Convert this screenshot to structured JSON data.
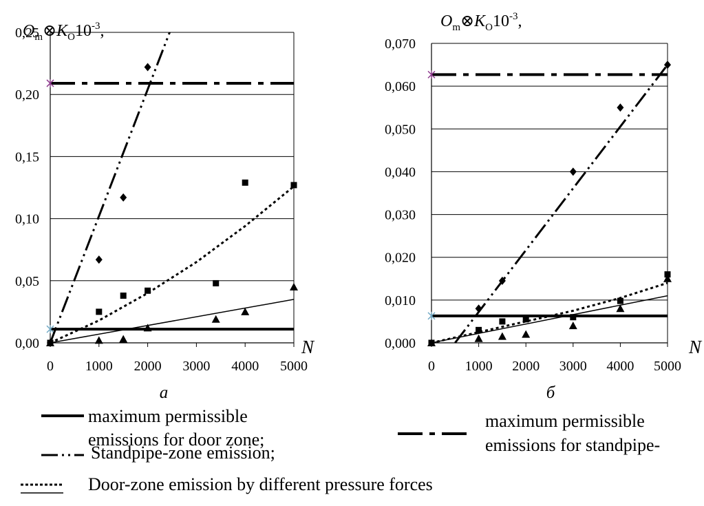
{
  "chart_data": [
    {
      "type": "scatter",
      "panel_label": "а",
      "ylabel": {
        "base": "O",
        "base_sub": "m",
        "op": "⊗",
        "k": "K",
        "k_sub": "O",
        "tail": "10",
        "exp": "-3",
        "end": ","
      },
      "xlabel": "N",
      "xlim": [
        0,
        5000
      ],
      "ylim": [
        0,
        0.25
      ],
      "x_ticks": [
        0,
        1000,
        2000,
        3000,
        4000,
        5000
      ],
      "x_tick_labels": [
        "0",
        "1000",
        "2000",
        "3000",
        "4000",
        "5000"
      ],
      "y_ticks": [
        0,
        0.05,
        0.1,
        0.15,
        0.2,
        0.25
      ],
      "y_tick_labels": [
        "0,00",
        "0,05",
        "0,10",
        "0,15",
        "0,20",
        "0,25"
      ],
      "grid": "horizontal",
      "series": [
        {
          "marker": "diamond",
          "style": "dash-dot-dot",
          "points": [
            [
              0,
              0.0
            ],
            [
              1000,
              0.067
            ],
            [
              1500,
              0.117
            ],
            [
              2000,
              0.222
            ]
          ],
          "trend": [
            [
              0,
              0.0
            ],
            [
              2450,
              0.25
            ]
          ]
        },
        {
          "marker": "square",
          "style": "dotted",
          "points": [
            [
              0,
              0.0
            ],
            [
              1000,
              0.025
            ],
            [
              1500,
              0.038
            ],
            [
              2000,
              0.042
            ],
            [
              3400,
              0.048
            ],
            [
              4000,
              0.129
            ],
            [
              5000,
              0.127
            ]
          ],
          "trend": [
            [
              0,
              0.0
            ],
            [
              1000,
              0.018
            ],
            [
              2000,
              0.04
            ],
            [
              3000,
              0.065
            ],
            [
              4000,
              0.094
            ],
            [
              5000,
              0.126
            ]
          ]
        },
        {
          "marker": "triangle",
          "style": "thin-solid",
          "points": [
            [
              0,
              0.0
            ],
            [
              1000,
              0.002
            ],
            [
              1500,
              0.003
            ],
            [
              2000,
              0.012
            ],
            [
              3400,
              0.019
            ],
            [
              4000,
              0.025
            ],
            [
              5000,
              0.045
            ]
          ],
          "trend": [
            [
              0,
              0.0
            ],
            [
              5000,
              0.035
            ]
          ]
        }
      ],
      "limits": [
        {
          "style": "thick-solid",
          "y": 0.011,
          "marker": "cross",
          "marker_color": "#6fa8c4"
        },
        {
          "style": "dash-dot",
          "y": 0.209,
          "marker": "cross",
          "marker_color": "#8e3a8e"
        }
      ]
    },
    {
      "type": "scatter",
      "panel_label": "б",
      "ylabel": {
        "base": "O",
        "base_sub": "m",
        "op": "⊗",
        "k": "K",
        "k_sub": "O",
        "tail": "10",
        "exp": "-3",
        "end": ","
      },
      "xlabel": "N",
      "xlim": [
        0,
        5000
      ],
      "ylim": [
        0,
        0.07
      ],
      "x_ticks": [
        0,
        1000,
        2000,
        3000,
        4000,
        5000
      ],
      "x_tick_labels": [
        "0",
        "1000",
        "2000",
        "3000",
        "4000",
        "5000"
      ],
      "y_ticks": [
        0,
        0.01,
        0.02,
        0.03,
        0.04,
        0.05,
        0.06,
        0.07
      ],
      "y_tick_labels": [
        "0,000",
        "0,010",
        "0,020",
        "0,030",
        "0,040",
        "0,050",
        "0,060",
        "0,070"
      ],
      "grid": "horizontal",
      "series": [
        {
          "marker": "diamond",
          "style": "dash-dot-dot",
          "points": [
            [
              1000,
              0.008
            ],
            [
              1500,
              0.0145
            ],
            [
              3000,
              0.04
            ],
            [
              4000,
              0.055
            ],
            [
              5000,
              0.065
            ]
          ],
          "trend": [
            [
              500,
              0.0
            ],
            [
              5000,
              0.065
            ]
          ]
        },
        {
          "marker": "square",
          "style": "dotted",
          "points": [
            [
              0,
              0.0
            ],
            [
              1000,
              0.003
            ],
            [
              1500,
              0.005
            ],
            [
              2000,
              0.0055
            ],
            [
              3000,
              0.006
            ],
            [
              4000,
              0.0098
            ],
            [
              5000,
              0.016
            ]
          ],
          "trend": [
            [
              0,
              0.0
            ],
            [
              1000,
              0.0025
            ],
            [
              2000,
              0.005
            ],
            [
              3000,
              0.0075
            ],
            [
              4000,
              0.0105
            ],
            [
              5000,
              0.014
            ]
          ]
        },
        {
          "marker": "triangle",
          "style": "thin-solid",
          "points": [
            [
              0,
              0.0
            ],
            [
              1000,
              0.001
            ],
            [
              1500,
              0.0015
            ],
            [
              2000,
              0.002
            ],
            [
              3000,
              0.004
            ],
            [
              4000,
              0.008
            ],
            [
              5000,
              0.015
            ]
          ],
          "trend": [
            [
              0,
              0.0
            ],
            [
              5000,
              0.011
            ]
          ]
        }
      ],
      "limits": [
        {
          "style": "thick-solid",
          "y": 0.0063,
          "marker": "cross",
          "marker_color": "#6fa8c4"
        },
        {
          "style": "dash-dot",
          "y": 0.0627,
          "marker": "cross",
          "marker_color": "#8e3a8e"
        }
      ]
    }
  ],
  "legend": [
    {
      "style": "thick-solid",
      "lines": [
        "maximum permissible",
        "emissions for door zone;"
      ]
    },
    {
      "style": "dash-dot-dot",
      "lines": [
        "Standpipe-zone emission;"
      ]
    },
    {
      "style": "dash-dot",
      "lines": [
        "maximum permissible",
        "emissions for standpipe-"
      ]
    },
    {
      "style": "dotted-over-solid",
      "lines": [
        "Door-zone emission by different pressure forces"
      ]
    }
  ],
  "colors": {
    "ink": "#000000",
    "grid": "#000000",
    "cross_blue": "#6fa8c4",
    "cross_purple": "#8e3a8e"
  }
}
